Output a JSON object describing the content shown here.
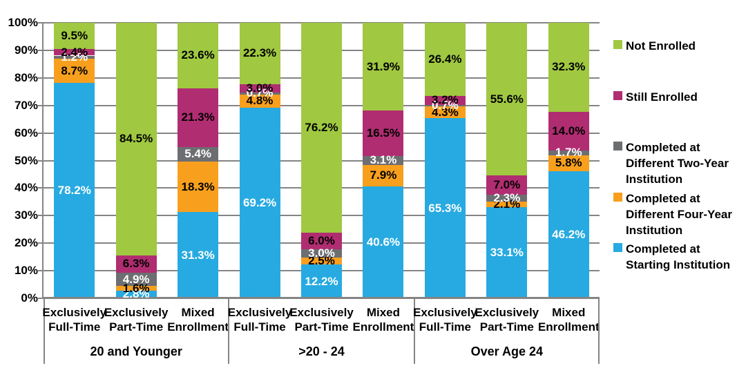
{
  "chart_data": {
    "type": "bar",
    "stacked": true,
    "title": "",
    "ylabel": "",
    "xlabel": "",
    "grid": true,
    "y_axis": {
      "min": 0,
      "max": 100,
      "step": 10,
      "suffix": "%"
    },
    "groups": [
      {
        "label": "20 and Younger",
        "categories": [
          "Exclusively Full-Time",
          "Exclusively Part-Time",
          "Mixed Enrollment"
        ]
      },
      {
        "label": ">20 - 24",
        "categories": [
          "Exclusively Full-Time",
          "Exclusively Part-Time",
          "Mixed Enrollment"
        ]
      },
      {
        "label": "Over Age 24",
        "categories": [
          "Exclusively Full-Time",
          "Exclusively Part-Time",
          "Mixed Enrollment"
        ]
      }
    ],
    "series": [
      {
        "name": "Completed at Starting Institution",
        "color": "#27AAE1",
        "label_color": "#FFFFFF",
        "values": [
          78.2,
          2.8,
          31.3,
          69.2,
          12.2,
          40.6,
          65.3,
          33.1,
          46.2
        ]
      },
      {
        "name": "Completed at Different Four-Year Institution",
        "color": "#F8A01E",
        "label_color": "#000000",
        "values": [
          8.7,
          1.6,
          18.3,
          4.8,
          2.5,
          7.9,
          4.3,
          2.1,
          5.8
        ]
      },
      {
        "name": "Completed at Different Two-Year Institution",
        "color": "#6D6E71",
        "label_color": "#FFFFFF",
        "values": [
          1.2,
          4.9,
          5.4,
          0.7,
          3.0,
          3.1,
          0.7,
          2.3,
          1.7
        ]
      },
      {
        "name": "Still Enrolled",
        "color": "#B02D71",
        "label_color": "#000000",
        "values": [
          2.4,
          6.3,
          21.3,
          3.0,
          6.0,
          16.5,
          3.2,
          7.0,
          14.0
        ]
      },
      {
        "name": "Not Enrolled",
        "color": "#A0C841",
        "label_color": "#000000",
        "values": [
          9.5,
          84.5,
          23.6,
          22.3,
          76.2,
          31.9,
          26.4,
          55.6,
          32.3
        ]
      }
    ],
    "legend": {
      "position": "right",
      "entries": [
        {
          "label": "Not Enrolled",
          "color": "#A0C841"
        },
        {
          "label": "Still Enrolled",
          "color": "#B02D71"
        },
        {
          "label": "Completed at Different Two-Year Institution",
          "color": "#6D6E71"
        },
        {
          "label": "Completed at Different Four-Year Institution",
          "color": "#F8A01E"
        },
        {
          "label": "Completed at Starting Institution",
          "color": "#27AAE1"
        }
      ]
    },
    "axis_color": "#848484"
  }
}
